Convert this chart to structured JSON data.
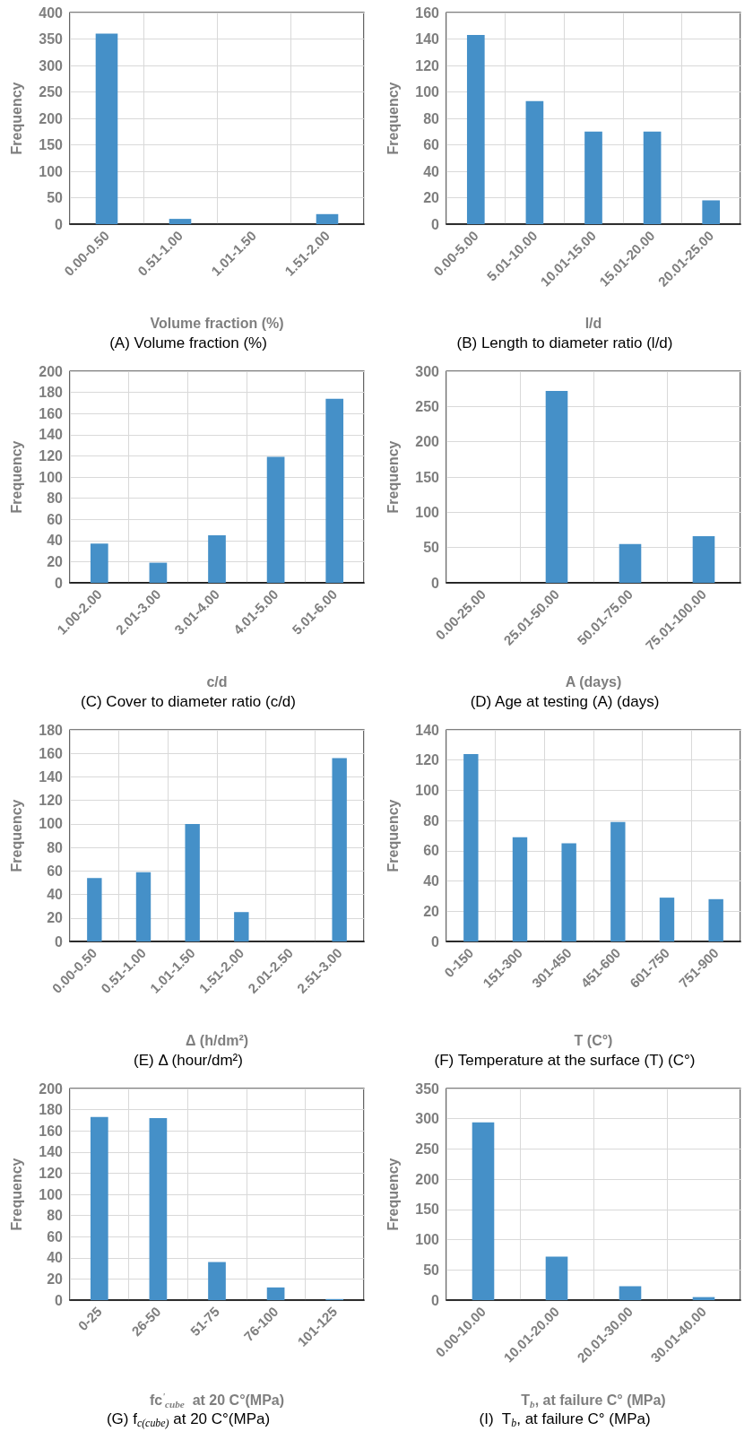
{
  "chart_data": [
    {
      "type": "bar",
      "title": "(A) Volume fraction (%)",
      "xlabel": "Volume fraction (%)",
      "ylabel": "Frequency",
      "categories": [
        "0.00-0.50",
        "0.51-1.00",
        "1.01-1.50",
        "1.51-2.00"
      ],
      "values": [
        360,
        10,
        0,
        19
      ],
      "color": "#4590c8",
      "ylim": [
        0,
        400
      ],
      "yticks": [
        0,
        50,
        100,
        150,
        200,
        250,
        300,
        350,
        400
      ],
      "grid": true
    },
    {
      "type": "bar",
      "title": "(B) Length to diameter ratio (l/d)",
      "xlabel": "l/d",
      "ylabel": "Frequency",
      "categories": [
        "0.00-5.00",
        "5.01-10.00",
        "10.01-15.00",
        "15.01-20.00",
        "20.01-25.00"
      ],
      "values": [
        143,
        93,
        70,
        70,
        18
      ],
      "color": "#4590c8",
      "ylim": [
        0,
        160
      ],
      "yticks": [
        0,
        20,
        40,
        60,
        80,
        100,
        120,
        140,
        160
      ],
      "grid": true
    },
    {
      "type": "bar",
      "title": "(C) Cover to diameter ratio (c/d)",
      "xlabel": "c/d",
      "ylabel": "Frequency",
      "categories": [
        "1.00-2.00",
        "2.01-3.00",
        "3.01-4.00",
        "4.01-5.00",
        "5.01-6.00"
      ],
      "values": [
        37,
        19,
        45,
        119,
        174
      ],
      "color": "#4590c8",
      "ylim": [
        0,
        200
      ],
      "yticks": [
        0,
        20,
        40,
        60,
        80,
        100,
        120,
        140,
        160,
        180,
        200
      ],
      "grid": true
    },
    {
      "type": "bar",
      "title": "(D) Age at testing (A) (days)",
      "xlabel": "A (days)",
      "ylabel": "Frequency",
      "categories": [
        "0.00-25.00",
        "25.01-50.00",
        "50.01-75.00",
        "75.01-100.00"
      ],
      "values": [
        0,
        272,
        55,
        66
      ],
      "color": "#4590c8",
      "ylim": [
        0,
        300
      ],
      "yticks": [
        0,
        50,
        100,
        150,
        200,
        250,
        300
      ],
      "grid": true
    },
    {
      "type": "bar",
      "title": "(E) Δ (hour/dm²)",
      "xlabel": "Δ (h/dm²)",
      "ylabel": "Frequency",
      "categories": [
        "0.00-0.50",
        "0.51-1.00",
        "1.01-1.50",
        "1.51-2.00",
        "2.01-2.50",
        "2.51-3.00"
      ],
      "values": [
        54,
        59,
        100,
        25,
        0,
        156
      ],
      "color": "#4590c8",
      "ylim": [
        0,
        180
      ],
      "yticks": [
        0,
        20,
        40,
        60,
        80,
        100,
        120,
        140,
        160,
        180
      ],
      "grid": true
    },
    {
      "type": "bar",
      "title": "(F) Temperature at the surface (T) (C°)",
      "xlabel": "T (C°)",
      "ylabel": "Frequency",
      "categories": [
        "0-150",
        "151-300",
        "301-450",
        "451-600",
        "601-750",
        "751-900"
      ],
      "values": [
        124,
        69,
        65,
        79,
        29,
        28
      ],
      "color": "#4590c8",
      "ylim": [
        0,
        140
      ],
      "yticks": [
        0,
        20,
        40,
        60,
        80,
        100,
        120,
        140
      ],
      "grid": true
    },
    {
      "type": "bar",
      "title": "(G) f$_{c(cube)}$ at 20 C°(MPa)",
      "xlabel": "fc$^{'}$$_{cube}$  at 20 C°(MPa)",
      "ylabel": "Frequency",
      "categories": [
        "0-25",
        "26-50",
        "51-75",
        "76-100",
        "101-125"
      ],
      "values": [
        173,
        172,
        36,
        12,
        1
      ],
      "color": "#4590c8",
      "ylim": [
        0,
        200
      ],
      "yticks": [
        0,
        20,
        40,
        60,
        80,
        100,
        120,
        140,
        160,
        180,
        200
      ],
      "grid": true
    },
    {
      "type": "bar",
      "title": "(I)  T$_{b}$, at failure C° (MPa)",
      "xlabel": "T$_{b}$, at failure C° (MPa)",
      "ylabel": "Frequency",
      "categories": [
        "0.00-10.00",
        "10.01-20.00",
        "20.01-30.00",
        "30.01-40.00"
      ],
      "values": [
        294,
        72,
        23,
        5
      ],
      "color": "#4590c8",
      "ylim": [
        0,
        350
      ],
      "yticks": [
        0,
        50,
        100,
        150,
        200,
        250,
        300,
        350
      ],
      "grid": true
    }
  ]
}
